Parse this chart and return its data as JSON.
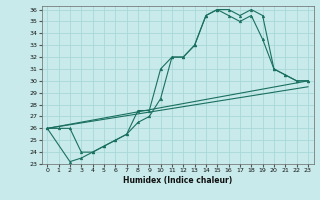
{
  "xlabel": "Humidex (Indice chaleur)",
  "bg_color": "#c8eaea",
  "grid_color": "#a8d8d8",
  "line_color": "#1a7060",
  "xlim": [
    -0.5,
    23.5
  ],
  "ylim": [
    23,
    36.3
  ],
  "xticks": [
    0,
    1,
    2,
    3,
    4,
    5,
    6,
    7,
    8,
    9,
    10,
    11,
    12,
    13,
    14,
    15,
    16,
    17,
    18,
    19,
    20,
    21,
    22,
    23
  ],
  "yticks": [
    23,
    24,
    25,
    26,
    27,
    28,
    29,
    30,
    31,
    32,
    33,
    34,
    35,
    36
  ],
  "curve1_x": [
    0,
    1,
    2,
    3,
    4,
    5,
    6,
    7,
    8,
    9,
    10,
    11,
    12,
    13,
    14,
    15,
    16,
    17,
    18,
    19,
    20,
    21,
    22,
    23
  ],
  "curve1_y": [
    26,
    26,
    26,
    24,
    24,
    24.5,
    25,
    25.5,
    27.5,
    27.5,
    31,
    32,
    32,
    33,
    35.5,
    36,
    36,
    35.5,
    36,
    35.5,
    31,
    30.5,
    30,
    30
  ],
  "curve2_x": [
    0,
    2,
    3,
    4,
    5,
    6,
    7,
    8,
    9,
    10,
    11,
    12,
    13,
    14,
    15,
    16,
    17,
    18,
    19,
    20,
    21,
    22,
    23
  ],
  "curve2_y": [
    26,
    23.2,
    23.5,
    24,
    24.5,
    25,
    25.5,
    26.5,
    27,
    28.5,
    32,
    32,
    33,
    35.5,
    36,
    35.5,
    35,
    35.5,
    33.5,
    31,
    30.5,
    30,
    30
  ],
  "line1_x": [
    0,
    23
  ],
  "line1_y": [
    26,
    29.5
  ],
  "line2_x": [
    0,
    23
  ],
  "line2_y": [
    26,
    30.0
  ]
}
